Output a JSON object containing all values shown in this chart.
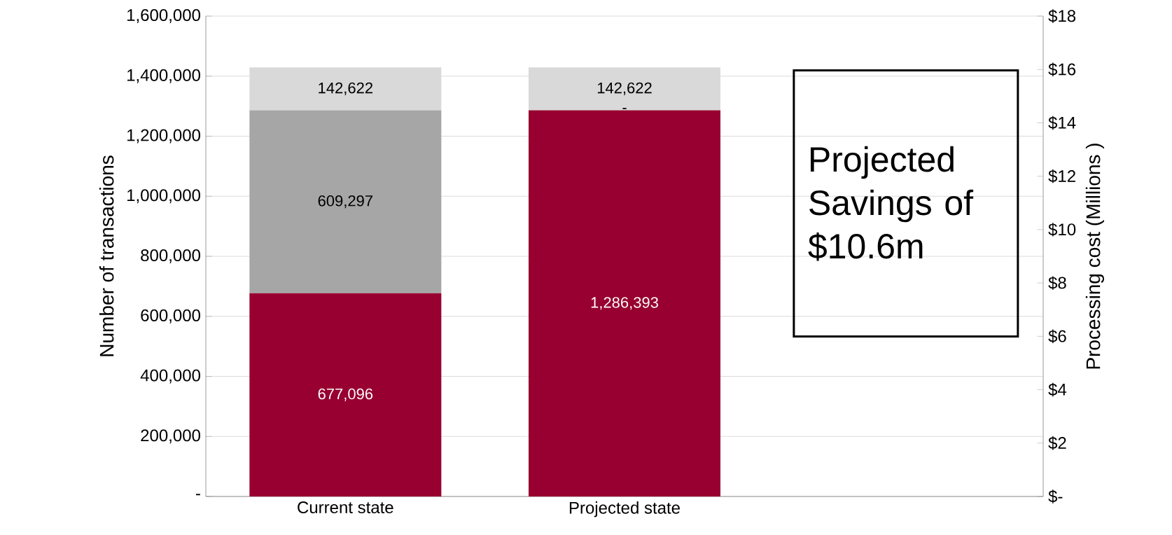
{
  "chart_data": {
    "type": "bar",
    "stacked": true,
    "categories": [
      "Current state",
      "Projected state",
      null
    ],
    "series": [
      {
        "color": "#970030",
        "values": [
          677096,
          1286393,
          null
        ],
        "value_labels": [
          "677,096",
          "1,286,393",
          null
        ]
      },
      {
        "color": "#a6a6a6",
        "values": [
          609297,
          0,
          null
        ],
        "value_labels": [
          "609,297",
          "-",
          null
        ]
      },
      {
        "color": "#d9d9d9",
        "values": [
          142622,
          142622,
          null
        ],
        "value_labels": [
          "142,622",
          "142,622",
          null
        ]
      }
    ],
    "ylabel": "Number of transactions",
    "y2label": "Processing cost (Millions )",
    "ylim": [
      0,
      1600000
    ],
    "yticks": [
      {
        "value": 0,
        "label": "-"
      },
      {
        "value": 200000,
        "label": "200,000"
      },
      {
        "value": 400000,
        "label": "400,000"
      },
      {
        "value": 600000,
        "label": "600,000"
      },
      {
        "value": 800000,
        "label": "800,000"
      },
      {
        "value": 1000000,
        "label": "1,000,000"
      },
      {
        "value": 1200000,
        "label": "1,200,000"
      },
      {
        "value": 1400000,
        "label": "1,400,000"
      },
      {
        "value": 1600000,
        "label": "1,600,000"
      }
    ],
    "y2lim": [
      0,
      18
    ],
    "y2ticks": [
      {
        "value": 0,
        "label": "$-"
      },
      {
        "value": 2,
        "label": "$2"
      },
      {
        "value": 4,
        "label": "$4"
      },
      {
        "value": 6,
        "label": "$6"
      },
      {
        "value": 8,
        "label": "$8"
      },
      {
        "value": 10,
        "label": "$10"
      },
      {
        "value": 12,
        "label": "$12"
      },
      {
        "value": 14,
        "label": "$14"
      },
      {
        "value": 16,
        "label": "$16"
      },
      {
        "value": 18,
        "label": "$18"
      }
    ],
    "grid": "y",
    "annotations": [
      "Projected Savings of $10.6m"
    ]
  }
}
